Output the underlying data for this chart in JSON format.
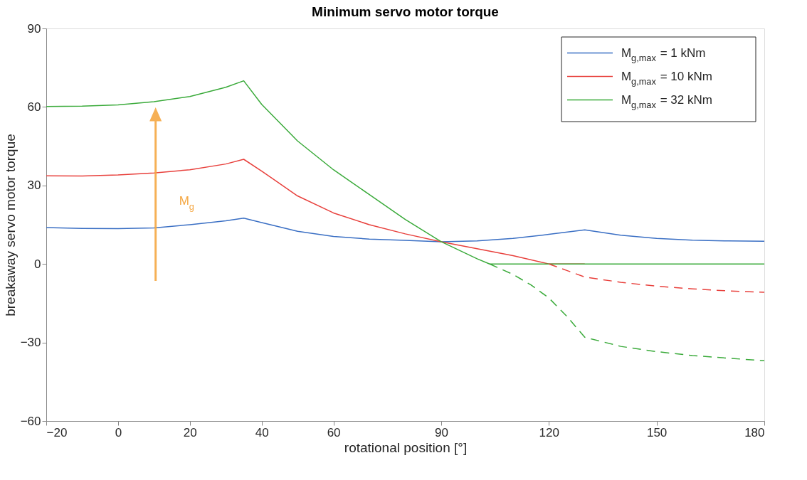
{
  "chart_data": {
    "type": "line",
    "title": "Minimum servo motor torque",
    "xlabel": "rotational position [°]",
    "ylabel": "breakaway servo motor torque",
    "xlim": [
      -20,
      180
    ],
    "xticks": [
      -20,
      0,
      20,
      40,
      60,
      90,
      120,
      150,
      180
    ],
    "ylim": [
      -60,
      90
    ],
    "yticks": [
      -60,
      -30,
      0,
      30,
      60,
      90
    ],
    "grid": false,
    "legend": "top right",
    "marker": "none",
    "series": [
      {
        "name": "M$_{g,max}$ = 1 kNm",
        "color": "#3a6fc4",
        "line_style": "solid",
        "x": [
          -20,
          -10,
          0,
          10,
          20,
          30,
          35,
          40,
          50,
          60,
          70,
          80,
          90,
          100,
          110,
          120,
          130,
          140,
          150,
          160,
          170,
          180
        ],
        "values": [
          13.9,
          13.6,
          13.5,
          13.8,
          15,
          16.5,
          17.5,
          15.8,
          12.5,
          10.5,
          9.5,
          9,
          8.5,
          8.8,
          9.8,
          11.3,
          13,
          11,
          9.8,
          9.1,
          8.8,
          8.7
        ]
      },
      {
        "name": "M$_{g,max}$ = 10 kNm",
        "color": "#e8403c",
        "line_style": "solid",
        "x": [
          -20,
          -10,
          0,
          10,
          20,
          30,
          35,
          40,
          50,
          60,
          70,
          80,
          90,
          100,
          110,
          120,
          130
        ],
        "values": [
          33.7,
          33.6,
          34,
          34.8,
          36,
          38.2,
          40,
          35.5,
          26,
          19.5,
          15,
          11.5,
          8.5,
          5.8,
          3.2,
          0,
          0
        ]
      },
      {
        "name": "M$_{g,max}$ = 32 kNm",
        "color": "#3aaa3a",
        "line_style": "solid",
        "x": [
          -20,
          -10,
          0,
          10,
          20,
          30,
          35,
          40,
          50,
          60,
          70,
          80,
          90,
          100,
          103.5,
          120,
          140,
          160,
          180
        ],
        "values": [
          60.2,
          60.3,
          60.8,
          62,
          64,
          67.5,
          70,
          61,
          47,
          36,
          26.5,
          17,
          8.5,
          2,
          0,
          0,
          0,
          0,
          0
        ]
      },
      {
        "color": "#e8403c",
        "line_style": "dashed",
        "x": [
          120,
          125,
          130,
          140,
          150,
          160,
          170,
          180
        ],
        "values": [
          0,
          -2.5,
          -5,
          -7,
          -8.5,
          -9.5,
          -10.3,
          -10.8
        ]
      },
      {
        "color": "#3aaa3a",
        "line_style": "dashed",
        "x": [
          103.5,
          110,
          115,
          120,
          125,
          130,
          140,
          150,
          160,
          170,
          180
        ],
        "values": [
          0,
          -4,
          -8,
          -13,
          -20,
          -28,
          -31.5,
          -33.5,
          -35,
          -36,
          -37
        ]
      }
    ],
    "annotations": [
      "M$_{g}$"
    ]
  }
}
